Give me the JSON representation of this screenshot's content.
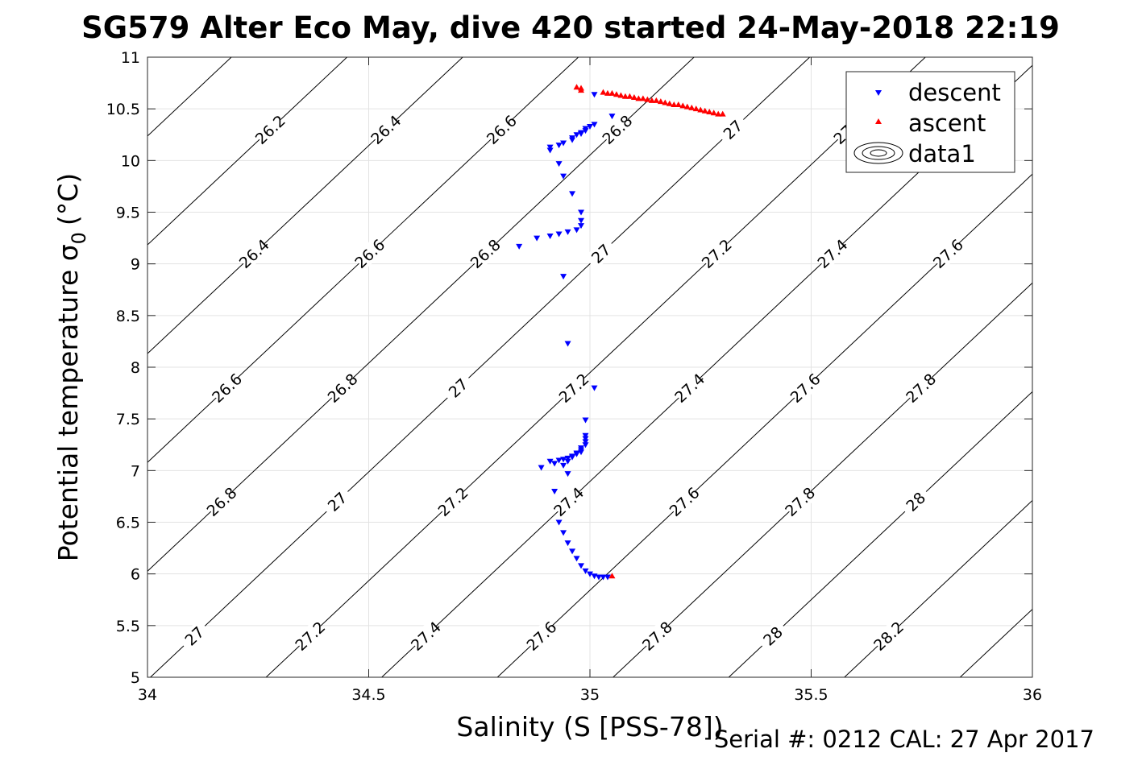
{
  "chart_data": {
    "type": "scatter",
    "title": "SG579 Alter Eco May, dive 420 started 24-May-2018 22:19",
    "xlabel": "Salinity (S [PSS-78])",
    "ylabel_main": "Potential temperature σ",
    "ylabel_sub": "0",
    "ylabel_unit": "(°C)",
    "xlim": [
      34,
      36
    ],
    "ylim": [
      5,
      11
    ],
    "xticks": [
      "34",
      "34.5",
      "35",
      "35.5",
      "36"
    ],
    "yticks": [
      "5",
      "5.5",
      "6",
      "6.5",
      "7",
      "7.5",
      "8",
      "8.5",
      "9",
      "9.5",
      "10",
      "10.5",
      "11"
    ],
    "grid": true,
    "legend_position": "top-right",
    "legend": [
      "descent",
      "ascent",
      "data1"
    ],
    "footer": "Serial #: 0212  CAL: 27 Apr 2017",
    "series": [
      {
        "name": "descent",
        "marker": "triangle-down",
        "color": "#0000ff",
        "points": [
          [
            35.01,
            10.64
          ],
          [
            35.05,
            10.43
          ],
          [
            35.01,
            10.35
          ],
          [
            35.0,
            10.33
          ],
          [
            34.99,
            10.31
          ],
          [
            34.99,
            10.29
          ],
          [
            34.98,
            10.27
          ],
          [
            34.98,
            10.26
          ],
          [
            34.97,
            10.25
          ],
          [
            34.96,
            10.22
          ],
          [
            34.96,
            10.2
          ],
          [
            34.94,
            10.17
          ],
          [
            34.93,
            10.15
          ],
          [
            34.91,
            10.13
          ],
          [
            34.91,
            10.1
          ],
          [
            34.93,
            9.97
          ],
          [
            34.94,
            9.85
          ],
          [
            34.96,
            9.68
          ],
          [
            34.98,
            9.5
          ],
          [
            34.98,
            9.42
          ],
          [
            34.98,
            9.37
          ],
          [
            34.97,
            9.33
          ],
          [
            34.95,
            9.31
          ],
          [
            34.93,
            9.29
          ],
          [
            34.91,
            9.27
          ],
          [
            34.88,
            9.25
          ],
          [
            34.84,
            9.17
          ],
          [
            34.94,
            8.88
          ],
          [
            34.95,
            8.23
          ],
          [
            35.01,
            7.8
          ],
          [
            34.99,
            7.49
          ],
          [
            34.99,
            7.34
          ],
          [
            34.99,
            7.31
          ],
          [
            34.99,
            7.28
          ],
          [
            34.99,
            7.25
          ],
          [
            34.98,
            7.22
          ],
          [
            34.98,
            7.2
          ],
          [
            34.98,
            7.18
          ],
          [
            34.97,
            7.17
          ],
          [
            34.97,
            7.16
          ],
          [
            34.96,
            7.14
          ],
          [
            34.96,
            7.13
          ],
          [
            34.95,
            7.12
          ],
          [
            34.94,
            7.11
          ],
          [
            34.93,
            7.1
          ],
          [
            34.91,
            7.09
          ],
          [
            34.95,
            7.09
          ],
          [
            34.92,
            7.07
          ],
          [
            34.94,
            7.05
          ],
          [
            34.89,
            7.03
          ],
          [
            34.95,
            6.97
          ],
          [
            34.92,
            6.8
          ],
          [
            34.93,
            6.5
          ],
          [
            34.94,
            6.4
          ],
          [
            34.95,
            6.3
          ],
          [
            34.96,
            6.22
          ],
          [
            34.97,
            6.15
          ],
          [
            34.98,
            6.08
          ],
          [
            34.99,
            6.03
          ],
          [
            35.0,
            6.0
          ],
          [
            35.01,
            5.98
          ],
          [
            35.02,
            5.97
          ],
          [
            35.03,
            5.97
          ],
          [
            35.04,
            5.97
          ]
        ]
      },
      {
        "name": "ascent",
        "marker": "triangle-up",
        "color": "#ff0000",
        "points": [
          [
            34.97,
            10.71
          ],
          [
            34.98,
            10.7
          ],
          [
            34.98,
            10.68
          ],
          [
            35.03,
            10.66
          ],
          [
            35.04,
            10.65
          ],
          [
            35.05,
            10.65
          ],
          [
            35.06,
            10.64
          ],
          [
            35.07,
            10.63
          ],
          [
            35.08,
            10.62
          ],
          [
            35.09,
            10.62
          ],
          [
            35.1,
            10.61
          ],
          [
            35.11,
            10.6
          ],
          [
            35.12,
            10.6
          ],
          [
            35.13,
            10.59
          ],
          [
            35.14,
            10.58
          ],
          [
            35.15,
            10.58
          ],
          [
            35.16,
            10.57
          ],
          [
            35.17,
            10.56
          ],
          [
            35.18,
            10.55
          ],
          [
            35.19,
            10.54
          ],
          [
            35.2,
            10.54
          ],
          [
            35.21,
            10.53
          ],
          [
            35.22,
            10.52
          ],
          [
            35.23,
            10.51
          ],
          [
            35.24,
            10.5
          ],
          [
            35.25,
            10.49
          ],
          [
            35.26,
            10.48
          ],
          [
            35.27,
            10.47
          ],
          [
            35.28,
            10.46
          ],
          [
            35.29,
            10.45
          ],
          [
            35.3,
            10.45
          ],
          [
            35.05,
            5.98
          ]
        ]
      }
    ],
    "contours": {
      "name": "data1",
      "label_values": [
        "26.2",
        "26.4",
        "26.6",
        "26.8",
        "27",
        "27.2",
        "27.4",
        "27.6",
        "27.8",
        "28",
        "28.2"
      ]
    }
  }
}
